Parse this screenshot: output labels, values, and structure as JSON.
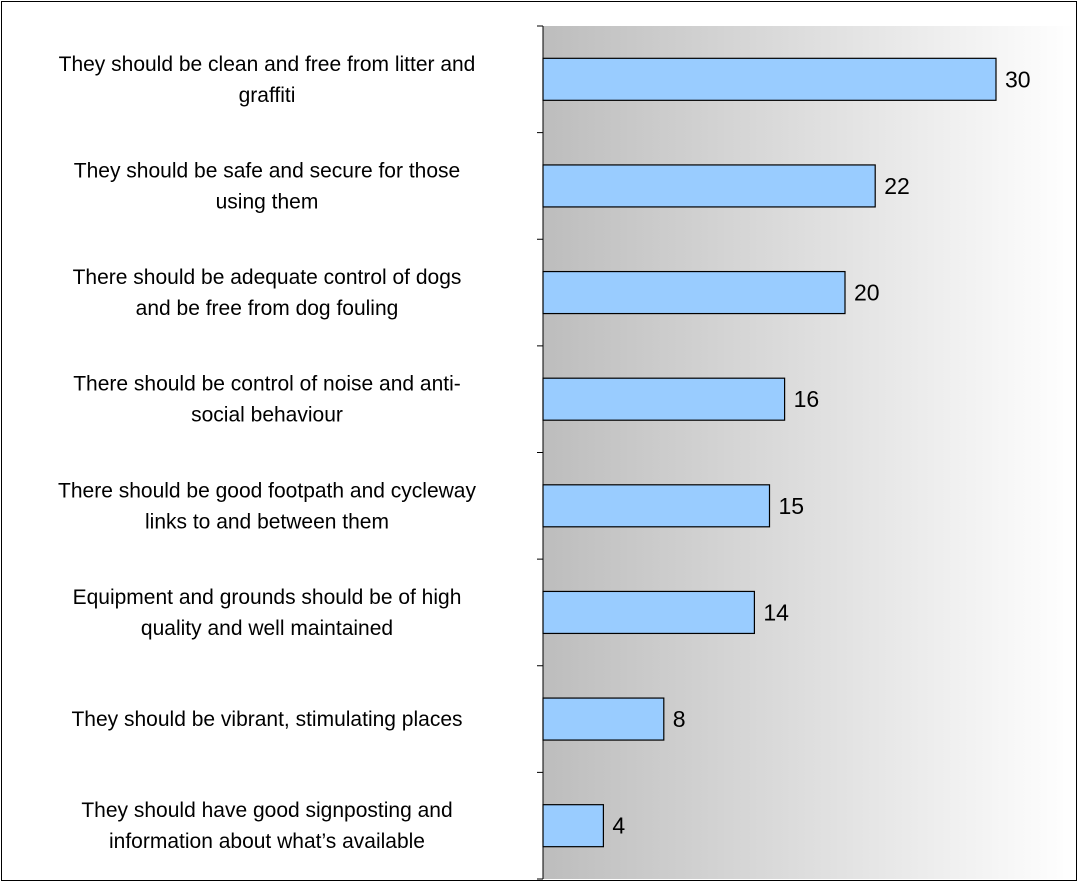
{
  "chart_data": {
    "type": "bar",
    "orientation": "horizontal",
    "categories": [
      [
        "They should be clean and free from litter and",
        "graffiti"
      ],
      [
        "They should be safe and secure for those",
        "using them"
      ],
      [
        "There should be adequate control of dogs",
        "and be free from dog fouling"
      ],
      [
        "There should be control of noise and anti-",
        "social behaviour"
      ],
      [
        "There should be good footpath and cycleway",
        "links to and between them"
      ],
      [
        "Equipment and grounds should be of high",
        "quality and well maintained"
      ],
      [
        "They should be vibrant, stimulating places"
      ],
      [
        "They should have good signposting and",
        "information about what’s available"
      ]
    ],
    "values": [
      30,
      22,
      20,
      16,
      15,
      14,
      8,
      4
    ],
    "value_labels": [
      "30",
      "22",
      "20",
      "16",
      "15",
      "14",
      "8",
      "4"
    ],
    "xlim": [
      0,
      32
    ],
    "bar_color": "#99ccff",
    "bar_edge_color": "#000000",
    "plot_background": "gradient gray-to-white",
    "grid": false,
    "legend": "none"
  }
}
